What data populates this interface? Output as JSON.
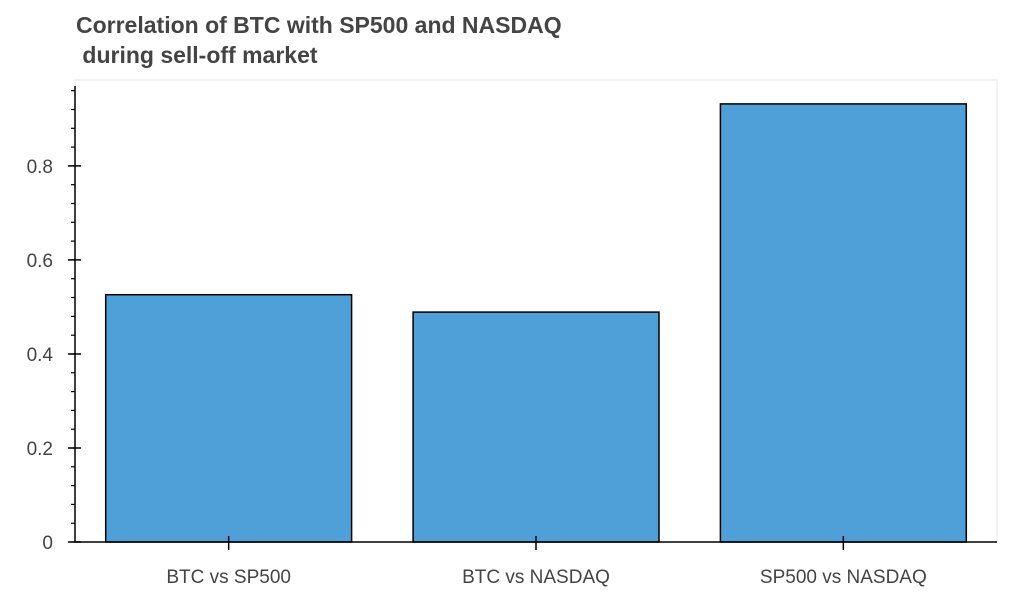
{
  "chart_data": {
    "type": "bar",
    "title": "Correlation of BTC with SP500 and NASDAQ\n during sell-off market",
    "xlabel": "",
    "ylabel": "",
    "categories": [
      "BTC vs SP500",
      "BTC vs NASDAQ",
      "SP500 vs NASDAQ"
    ],
    "values": [
      0.526,
      0.489,
      0.932
    ],
    "ylim": [
      0,
      0.97
    ],
    "y_ticks": [
      {
        "value": 0,
        "label": "0"
      },
      {
        "value": 0.2,
        "label": "0.2"
      },
      {
        "value": 0.4,
        "label": "0.4"
      },
      {
        "value": 0.6,
        "label": "0.6"
      },
      {
        "value": 0.8,
        "label": "0.8"
      }
    ],
    "y_minor_step": 0.04,
    "grid": false,
    "legend": "none",
    "bar_color": "#4FA0D8",
    "bar_edge_color": "#000000"
  }
}
